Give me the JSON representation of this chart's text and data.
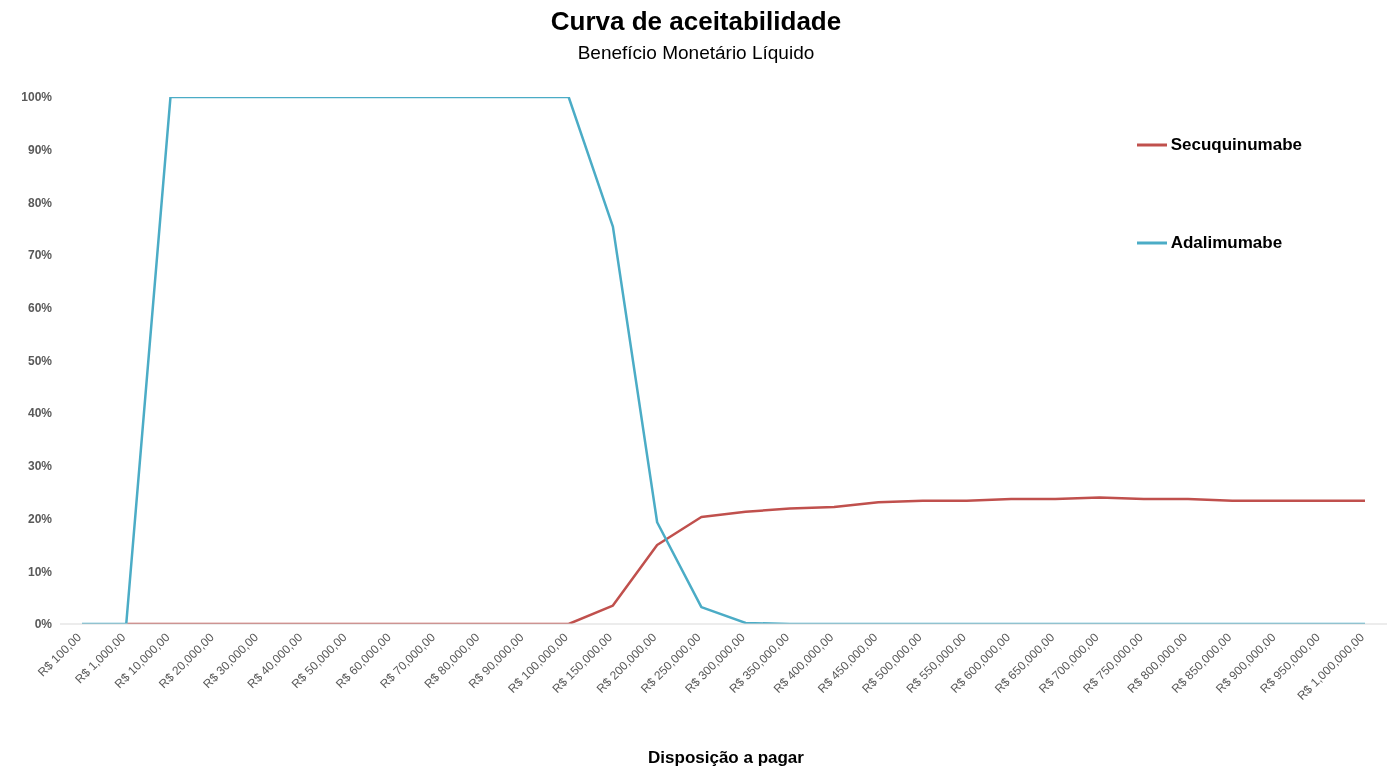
{
  "chart_data": {
    "type": "line",
    "title": "Curva de aceitabilidade",
    "subtitle": "Benefício Monetário Líquido",
    "xlabel": "Disposição a pagar",
    "categories": [
      "R$ 100,00",
      "R$ 1,000,00",
      "R$ 10,000,00",
      "R$ 20,000,00",
      "R$ 30,000,00",
      "R$ 40,000,00",
      "R$ 50,000,00",
      "R$ 60,000,00",
      "R$ 70,000,00",
      "R$ 80,000,00",
      "R$ 90,000,00",
      "R$ 100,000,00",
      "R$ 150,000,00",
      "R$ 200,000,00",
      "R$ 250,000,00",
      "R$ 300,000,00",
      "R$ 350,000,00",
      "R$ 400,000,00",
      "R$ 450,000,00",
      "R$ 500,000,00",
      "R$ 550,000,00",
      "R$ 600,000,00",
      "R$ 650,000,00",
      "R$ 700,000,00",
      "R$ 750,000,00",
      "R$ 800,000,00",
      "R$ 850,000,00",
      "R$ 900,000,00",
      "R$ 950,000,00",
      "R$ 1,000,000,00"
    ],
    "series": [
      {
        "name": "Secuquinumabe",
        "color": "#c0504d",
        "values": [
          null,
          0,
          0,
          0,
          0,
          0,
          0,
          0,
          0,
          0,
          0,
          0,
          3.5,
          15,
          20.3,
          21.3,
          21.9,
          22.2,
          23.1,
          23.4,
          23.4,
          23.7,
          23.7,
          24.0,
          23.7,
          23.7,
          23.4,
          23.4,
          23.4,
          23.4
        ]
      },
      {
        "name": "Adalimumabe",
        "color": "#4bacc6",
        "values": [
          0,
          0,
          100,
          100,
          100,
          100,
          100,
          100,
          100,
          100,
          100,
          100,
          75.4,
          19.3,
          3.2,
          0.2,
          0,
          0,
          0,
          0,
          0,
          0,
          0,
          0,
          0,
          0,
          0,
          0,
          0,
          0
        ]
      }
    ],
    "ylim": [
      0,
      100
    ],
    "yticks": [
      {
        "value": 0,
        "label": "0%"
      },
      {
        "value": 10,
        "label": "10%"
      },
      {
        "value": 20,
        "label": "20%"
      },
      {
        "value": 30,
        "label": "30%"
      },
      {
        "value": 40,
        "label": "40%"
      },
      {
        "value": 50,
        "label": "50%"
      },
      {
        "value": 60,
        "label": "60%"
      },
      {
        "value": 70,
        "label": "70%"
      },
      {
        "value": 80,
        "label": "80%"
      },
      {
        "value": 90,
        "label": "90%"
      },
      {
        "value": 100,
        "label": "100%"
      }
    ],
    "grid": false,
    "legend": "top right",
    "marker": "none",
    "line_style": "solid"
  }
}
